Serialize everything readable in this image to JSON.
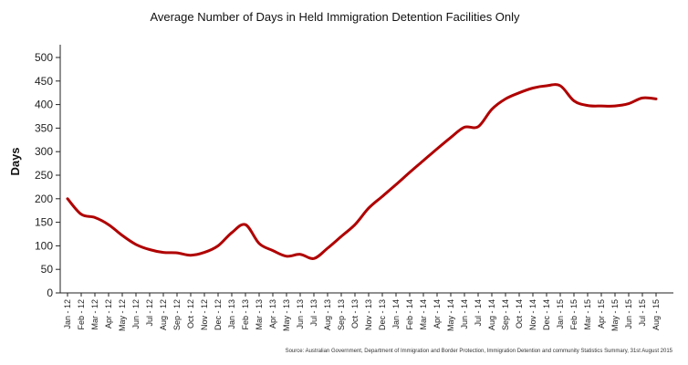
{
  "chart_data": {
    "type": "line",
    "title": "Average Number of Days in Held Immigration Detention Facilities Only",
    "ylabel": "Days",
    "xlabel": "",
    "ylim": [
      0,
      500
    ],
    "yticks": [
      0,
      50,
      100,
      150,
      200,
      250,
      300,
      350,
      400,
      450,
      500
    ],
    "grid": false,
    "line_color": "#b00000",
    "source": "Source: Australian Government, Department of Immigration and Border Protection, Immigration Detention and community Statistics Summary, 31st August 2015",
    "categories": [
      "Jan - 12",
      "Feb - 12",
      "Mar - 12",
      "Apr - 12",
      "May - 12",
      "Jun - 12",
      "Jul - 12",
      "Aug - 12",
      "Sep - 12",
      "Oct - 12",
      "Nov - 12",
      "Dec - 12",
      "Jan - 13",
      "Feb - 13",
      "Mar - 13",
      "Apr - 13",
      "May - 13",
      "Jun - 13",
      "Jul - 13",
      "Aug - 13",
      "Sep - 13",
      "Oct - 13",
      "Nov - 13",
      "Dec - 13",
      "Jan - 14",
      "Feb - 14",
      "Mar - 14",
      "Apr - 14",
      "May - 14",
      "Jun - 14",
      "Jul - 14",
      "Aug - 14",
      "Sep - 14",
      "Oct - 14",
      "Nov - 14",
      "Dec - 14",
      "Jan - 15",
      "Feb - 15",
      "Mar - 15",
      "Apr - 15",
      "May - 15",
      "Jun - 15",
      "Jul - 15",
      "Aug - 15"
    ],
    "series": [
      {
        "values": [
          200,
          167,
          160,
          145,
          122,
          103,
          92,
          86,
          85,
          80,
          86,
          100,
          128,
          145,
          105,
          90,
          78,
          82,
          73,
          95,
          120,
          145,
          180,
          205,
          230,
          256,
          281,
          306,
          330,
          352,
          353,
          390,
          412,
          425,
          435,
          440,
          440,
          408,
          398,
          397,
          397,
          402,
          414,
          412
        ]
      }
    ]
  }
}
